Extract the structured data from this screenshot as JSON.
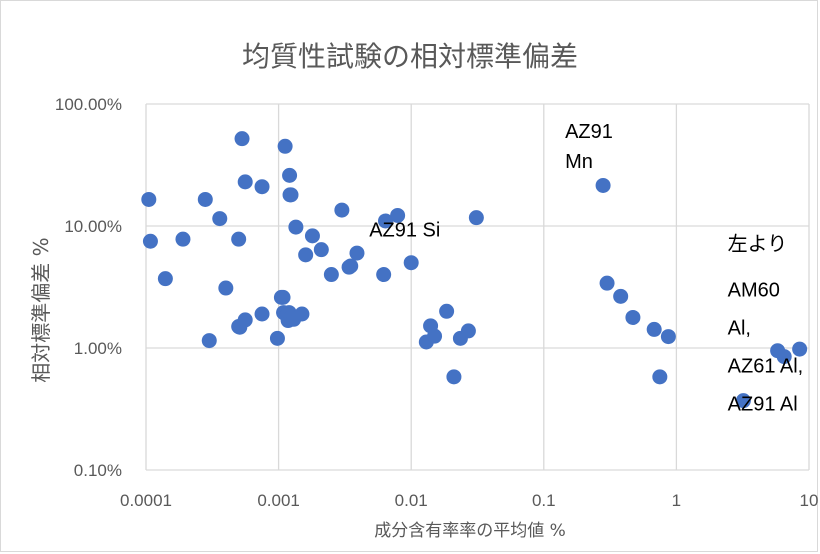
{
  "chart_data": {
    "type": "scatter",
    "title": "均質性試験の相対標準偏差",
    "xlabel": "成分含有率率の平均値 %",
    "ylabel": "相対標準偏差 %",
    "x_scale": "log",
    "y_scale": "log",
    "xlim": [
      0.0001,
      10
    ],
    "ylim": [
      0.001,
      1
    ],
    "x_ticks": [
      "0.0001",
      "0.001",
      "0.01",
      "0.1",
      "1",
      "10"
    ],
    "y_ticks": [
      "100.00%",
      "10.00%",
      "1.00%",
      "0.10%"
    ],
    "grid": true,
    "marker_color": "#4472c4",
    "annotations": [
      {
        "text": "AZ91 Si",
        "x": 0.031,
        "y": 0.117
      },
      {
        "text": "AZ91",
        "x": 0.28,
        "y": 0.22
      },
      {
        "text": "Mn",
        "x": 0.28,
        "y": 0.22
      },
      {
        "text": "左より",
        "x": 8.5,
        "y": 0.095
      },
      {
        "text": "AM60",
        "x": 8.5,
        "y": 0.095
      },
      {
        "text": "Al,",
        "x": 8.5,
        "y": 0.095
      },
      {
        "text": "AZ61 Al,",
        "x": 8.5,
        "y": 0.095
      },
      {
        "text": "AZ91 Al",
        "x": 8.5,
        "y": 0.095
      }
    ],
    "points": [
      [
        0.000105,
        0.165
      ],
      [
        0.000108,
        0.075
      ],
      [
        0.00014,
        0.037
      ],
      [
        0.00019,
        0.078
      ],
      [
        0.00028,
        0.165
      ],
      [
        0.0003,
        0.0115
      ],
      [
        0.00036,
        0.115
      ],
      [
        0.0004,
        0.031
      ],
      [
        0.0005,
        0.078
      ],
      [
        0.0005,
        0.015
      ],
      [
        0.00051,
        0.0148
      ],
      [
        0.00053,
        0.52
      ],
      [
        0.00056,
        0.23
      ],
      [
        0.00056,
        0.017
      ],
      [
        0.00075,
        0.21
      ],
      [
        0.00075,
        0.019
      ],
      [
        0.00098,
        0.012
      ],
      [
        0.00105,
        0.026
      ],
      [
        0.00108,
        0.026
      ],
      [
        0.00109,
        0.0195
      ],
      [
        0.00112,
        0.45
      ],
      [
        0.00115,
        0.0185
      ],
      [
        0.00118,
        0.0168
      ],
      [
        0.0012,
        0.0195
      ],
      [
        0.00121,
        0.26
      ],
      [
        0.00122,
        0.18
      ],
      [
        0.00124,
        0.18
      ],
      [
        0.00125,
        0.018
      ],
      [
        0.0013,
        0.0172
      ],
      [
        0.00135,
        0.098
      ],
      [
        0.0015,
        0.019
      ],
      [
        0.0016,
        0.058
      ],
      [
        0.0018,
        0.083
      ],
      [
        0.0021,
        0.064
      ],
      [
        0.0025,
        0.04
      ],
      [
        0.003,
        0.135
      ],
      [
        0.0034,
        0.046
      ],
      [
        0.0035,
        0.047
      ],
      [
        0.0039,
        0.06
      ],
      [
        0.0062,
        0.04
      ],
      [
        0.0064,
        0.11
      ],
      [
        0.0079,
        0.122
      ],
      [
        0.01,
        0.05
      ],
      [
        0.013,
        0.0112
      ],
      [
        0.014,
        0.0152
      ],
      [
        0.015,
        0.0125
      ],
      [
        0.0185,
        0.02
      ],
      [
        0.021,
        0.0058
      ],
      [
        0.0235,
        0.012
      ],
      [
        0.027,
        0.0138
      ],
      [
        0.031,
        0.117
      ],
      [
        0.28,
        0.215
      ],
      [
        0.3,
        0.034
      ],
      [
        0.38,
        0.0265
      ],
      [
        0.47,
        0.0178
      ],
      [
        0.68,
        0.0142
      ],
      [
        0.75,
        0.0058
      ],
      [
        0.87,
        0.0124
      ],
      [
        3.2,
        0.0037
      ],
      [
        5.8,
        0.0095
      ],
      [
        6.5,
        0.0085
      ],
      [
        8.5,
        0.0098
      ]
    ]
  }
}
